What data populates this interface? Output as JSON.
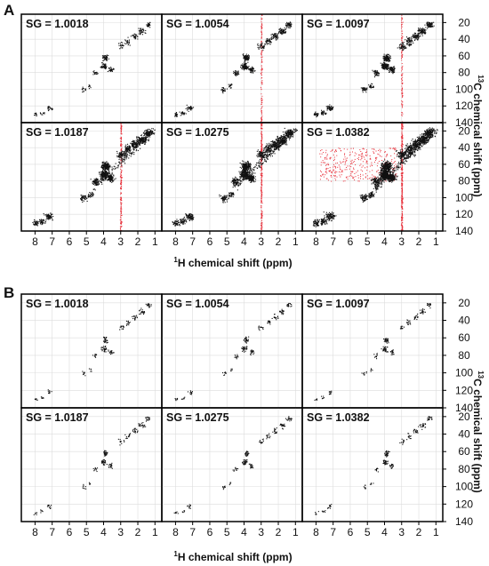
{
  "panel_labels": [
    "A",
    "B"
  ],
  "sg_labels": [
    "SG = 1.0018",
    "SG = 1.0054",
    "SG = 1.0097",
    "SG = 1.0187",
    "SG = 1.0275",
    "SG = 1.0382"
  ],
  "x_axis": {
    "title_sup": "1",
    "title_main": "H chemical shift (ppm)",
    "ticks": [
      "8",
      "7",
      "6",
      "5",
      "4",
      "3",
      "2",
      "1"
    ]
  },
  "y_axis": {
    "title_sup": "13",
    "title_main": "C chemical shift (ppm)",
    "ticks": [
      "20",
      "40",
      "60",
      "80",
      "100",
      "120",
      "140"
    ]
  },
  "colors": {
    "peaks": "#111111",
    "noise": "#e8303a",
    "grid": "#dcdcdc",
    "frame": "#000000"
  },
  "chart_data": [
    {
      "type": "scatter",
      "panel": "A",
      "subplots": [
        "SG = 1.0018",
        "SG = 1.0054",
        "SG = 1.0097",
        "SG = 1.0187",
        "SG = 1.0275",
        "SG = 1.0382"
      ],
      "x_label": "1H chemical shift (ppm)",
      "y_label": "13C chemical shift (ppm)",
      "xlim": [
        8.8,
        0.6
      ],
      "ylim": [
        10,
        140
      ],
      "y_reversed": true,
      "grid": true,
      "peak_density": [
        0.25,
        0.45,
        0.6,
        0.85,
        1.0,
        1.2
      ],
      "red_artifact_at_1H_ppm": 3.0,
      "red_artifact_strength": [
        0.0,
        0.25,
        0.2,
        0.5,
        0.8,
        1.0
      ]
    },
    {
      "type": "scatter",
      "panel": "B",
      "subplots": [
        "SG = 1.0018",
        "SG = 1.0054",
        "SG = 1.0097",
        "SG = 1.0187",
        "SG = 1.0275",
        "SG = 1.0382"
      ],
      "x_label": "1H chemical shift (ppm)",
      "y_label": "13C chemical shift (ppm)",
      "xlim": [
        8.8,
        0.6
      ],
      "ylim": [
        10,
        140
      ],
      "y_reversed": true,
      "grid": true,
      "peak_density": [
        0.15,
        0.15,
        0.15,
        0.15,
        0.15,
        0.15
      ],
      "red_artifact_strength": [
        0,
        0,
        0,
        0,
        0,
        0
      ]
    }
  ]
}
